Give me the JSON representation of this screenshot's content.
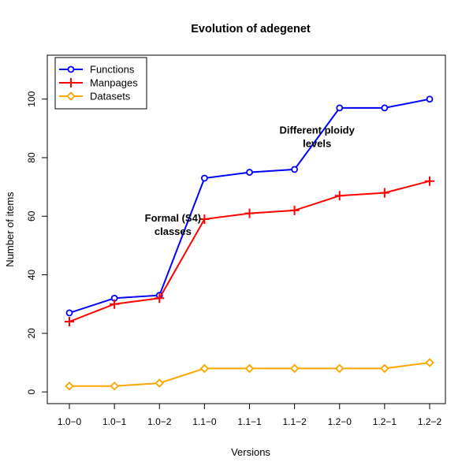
{
  "chart_data": {
    "type": "line",
    "title": "Evolution of adegenet",
    "xlabel": "Versions",
    "ylabel": "Number of items",
    "categories": [
      "1.0−0",
      "1.0−1",
      "1.0−2",
      "1.1−0",
      "1.1−1",
      "1.1−2",
      "1.2−0",
      "1.2−1",
      "1.2−2"
    ],
    "ylim": [
      -4,
      115
    ],
    "yticks": [
      0,
      20,
      40,
      60,
      80,
      100
    ],
    "grid": false,
    "legend_position": "top-left",
    "series": [
      {
        "name": "Functions",
        "color": "#0000ff",
        "marker": "circle",
        "values": [
          27,
          32,
          33,
          73,
          75,
          76,
          97,
          97,
          100
        ]
      },
      {
        "name": "Manpages",
        "color": "#ff0000",
        "marker": "plus",
        "values": [
          24,
          30,
          32,
          59,
          61,
          62,
          67,
          68,
          72
        ]
      },
      {
        "name": "Datasets",
        "color": "#ffa500",
        "marker": "diamond",
        "values": [
          2,
          2,
          3,
          8,
          8,
          8,
          8,
          8,
          10
        ]
      }
    ],
    "annotations": [
      {
        "lines": [
          "Formal (S4)",
          "classes"
        ],
        "x_index": 2.3,
        "y": 57
      },
      {
        "lines": [
          "Different ploidy",
          "levels"
        ],
        "x_index": 5.5,
        "y": 87
      }
    ]
  }
}
